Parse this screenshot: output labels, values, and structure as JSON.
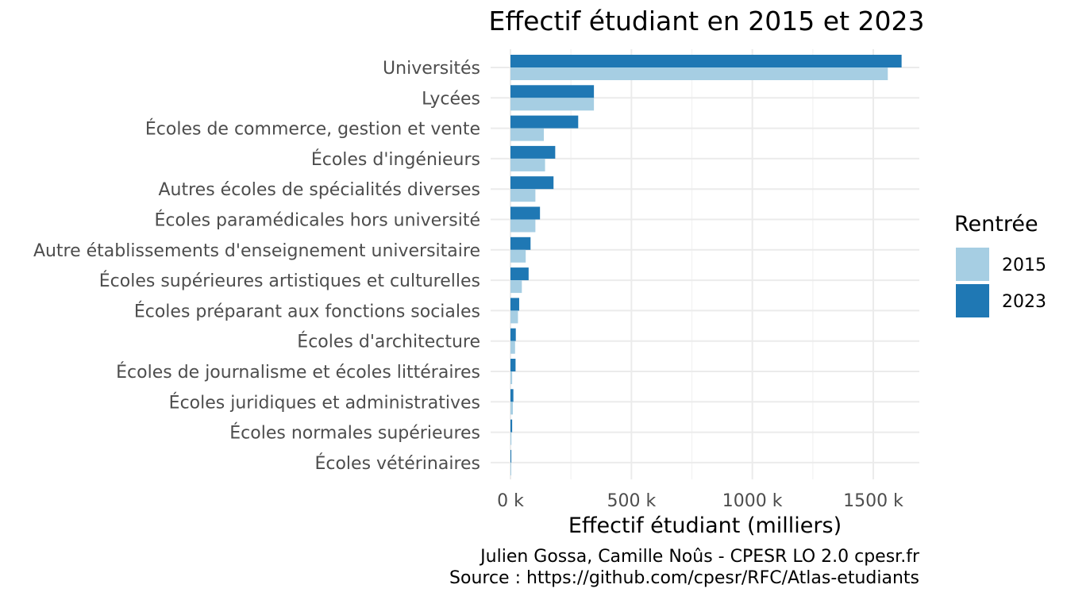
{
  "chart_data": {
    "type": "bar",
    "orientation": "horizontal",
    "title": "Effectif étudiant en 2015 et 2023",
    "xlabel": "Effectif étudiant (milliers)",
    "ylabel": "",
    "xlim": [
      0,
      1700000
    ],
    "x_ticks": [
      {
        "value": 0,
        "label": "0 k"
      },
      {
        "value": 500000,
        "label": "500 k"
      },
      {
        "value": 1000000,
        "label": "1000 k"
      },
      {
        "value": 1500000,
        "label": "1500 k"
      }
    ],
    "grid": true,
    "legend": {
      "title": "Rentrée",
      "position": "right",
      "entries": [
        "2015",
        "2023"
      ]
    },
    "categories": [
      "Universités",
      "Lycées",
      "Écoles de commerce, gestion et vente",
      "Écoles d'ingénieurs",
      "Autres écoles de spécialités diverses",
      "Écoles paramédicales hors université",
      "Autre établissements d'enseignement universitaire",
      "Écoles supérieures artistiques et culturelles",
      "Écoles préparant aux fonctions sociales",
      "Écoles d'architecture",
      "Écoles de journalisme et écoles littéraires",
      "Écoles juridiques et administratives",
      "Écoles normales supérieures",
      "Écoles vétérinaires"
    ],
    "series": [
      {
        "name": "2015",
        "color": "#a6cee3",
        "values": [
          1560000,
          345000,
          138000,
          143000,
          103000,
          103000,
          63000,
          47000,
          31000,
          19000,
          7000,
          10000,
          4000,
          2500
        ]
      },
      {
        "name": "2023",
        "color": "#1f78b4",
        "values": [
          1617000,
          345000,
          280000,
          185000,
          178000,
          122000,
          83000,
          75000,
          36000,
          22000,
          21000,
          12000,
          7000,
          3500
        ]
      }
    ]
  },
  "caption": {
    "line1": "Julien Gossa, Camille Noûs - CPESR LO 2.0 cpesr.fr",
    "line2": "Source : https://github.com/cpesr/RFC/Atlas-etudiants"
  }
}
